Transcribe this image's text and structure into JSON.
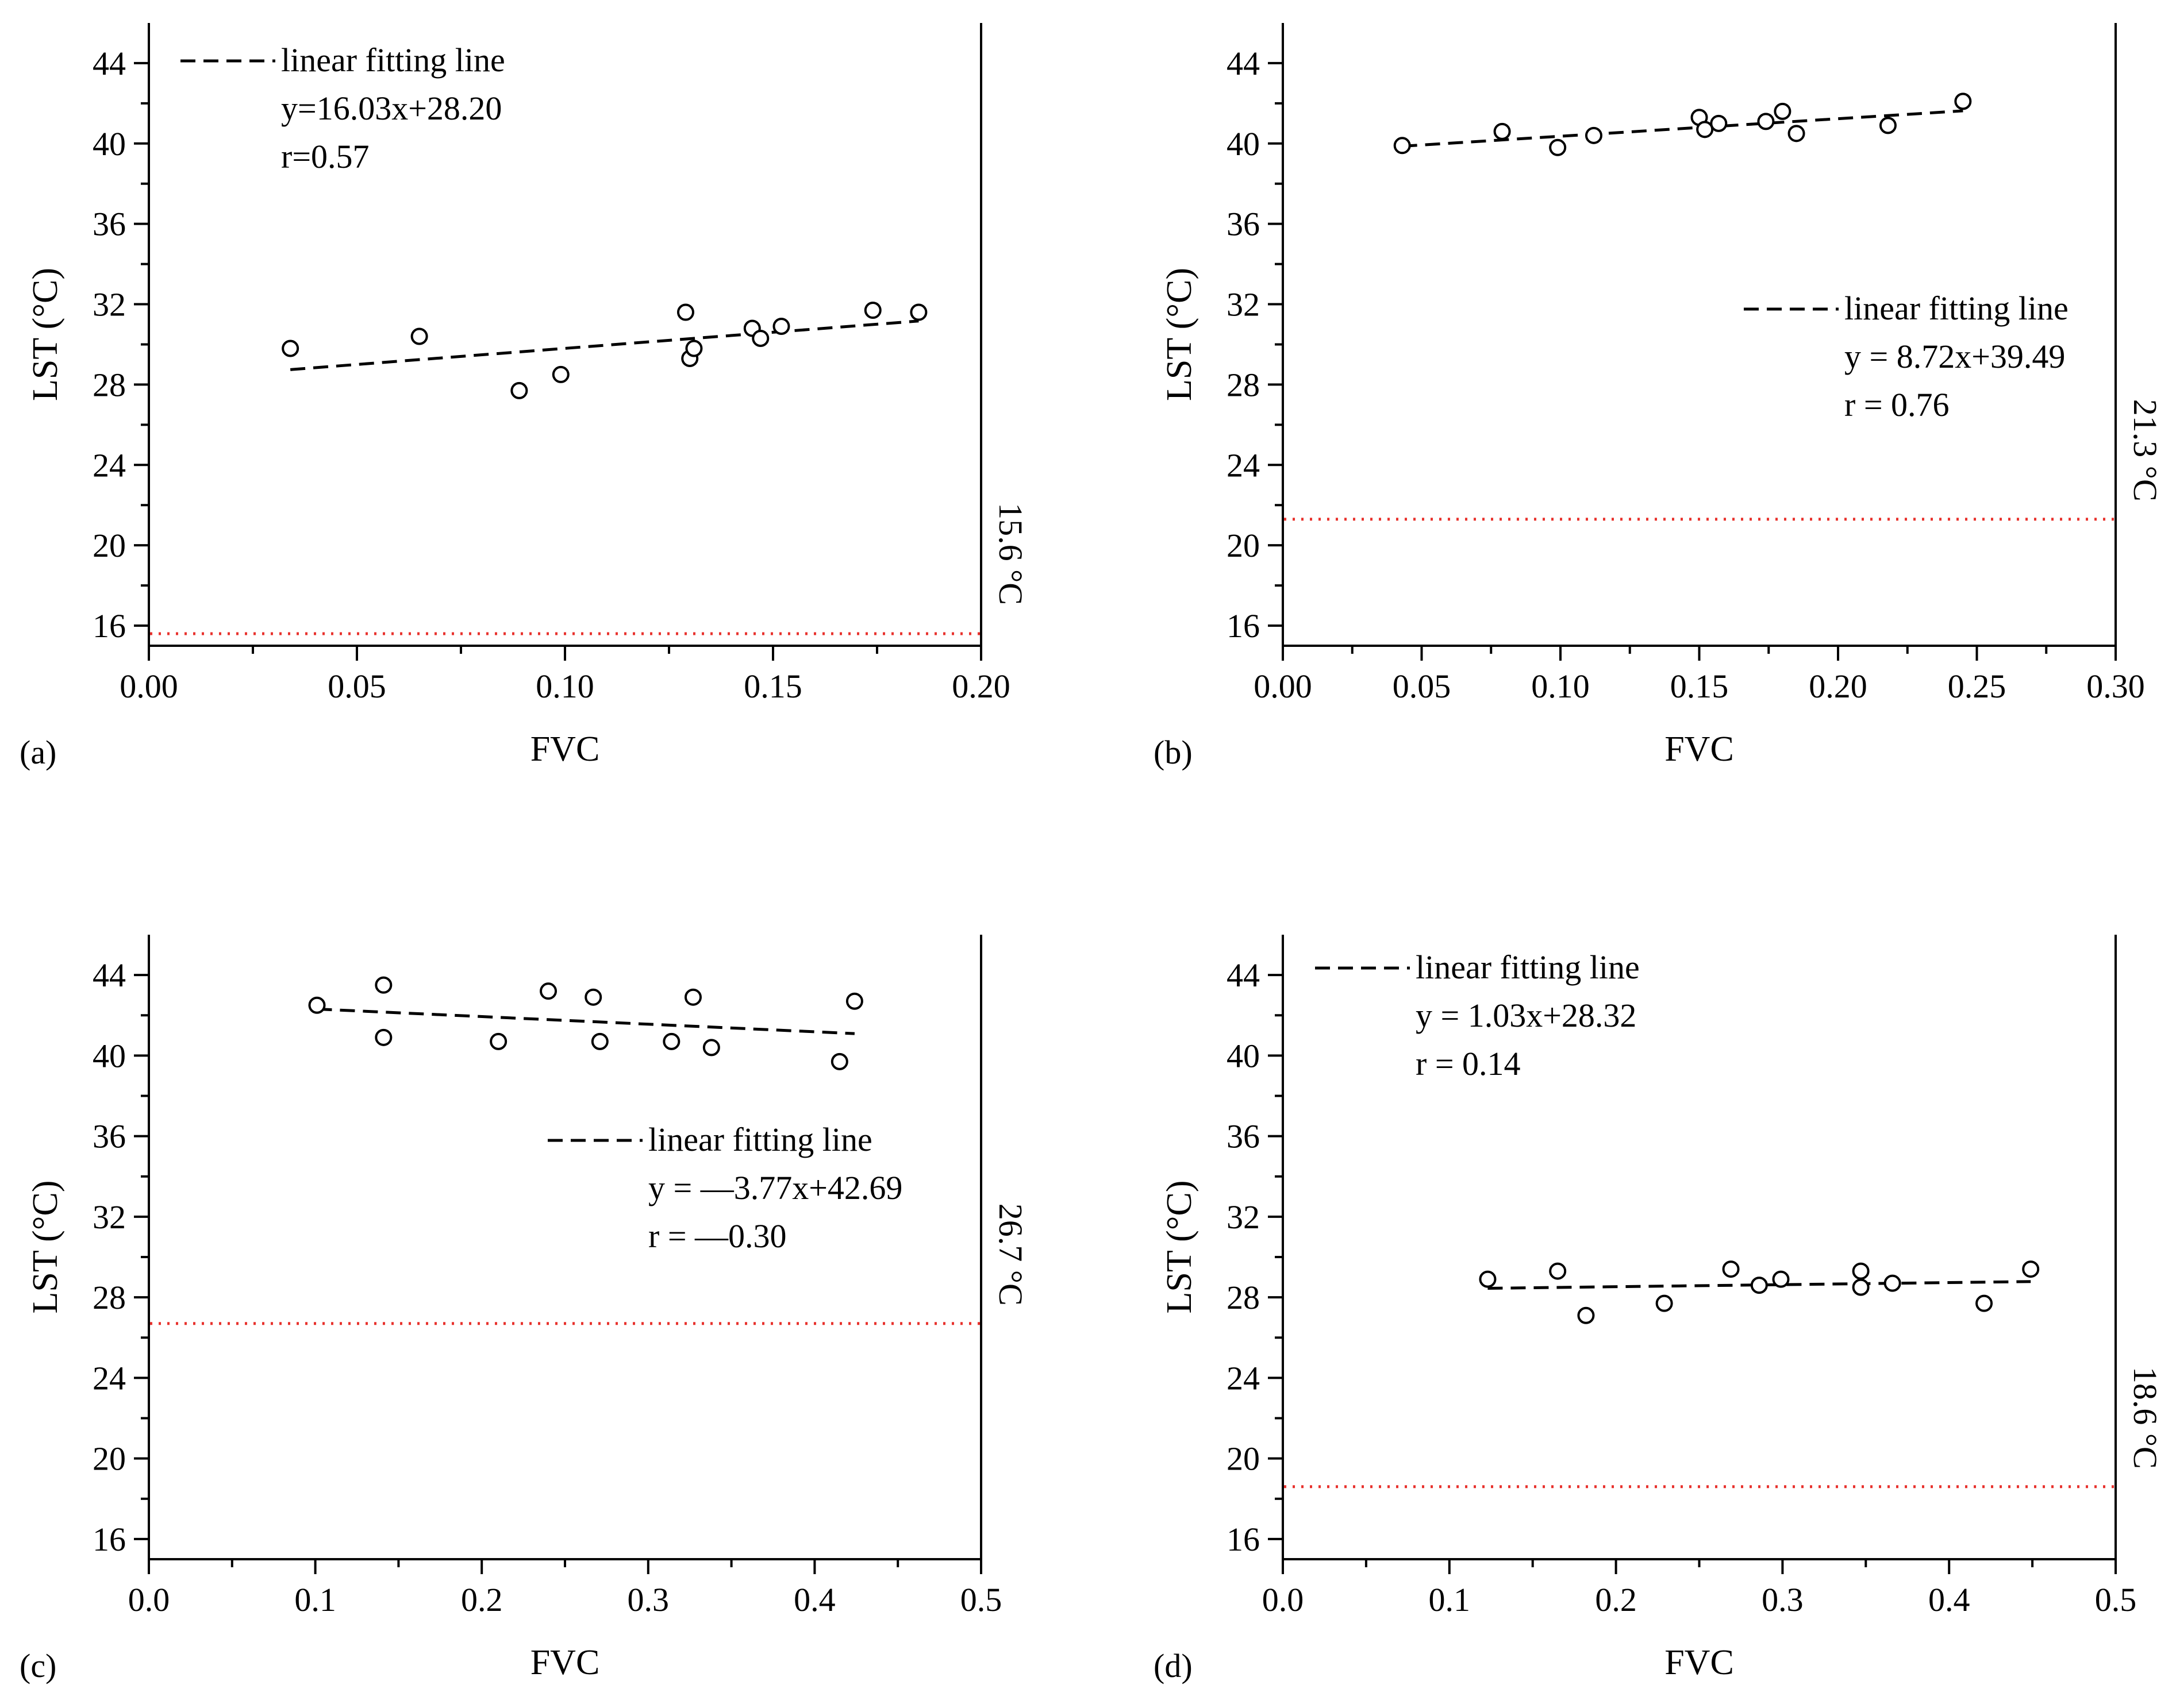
{
  "colors": {
    "axis": "#000000",
    "reference_line": "#e8322d",
    "points_fill": "#ffffff"
  },
  "chart_data": [
    {
      "panel": "(a)",
      "type": "scatter",
      "xlabel": "FVC",
      "ylabel": "LST (°C)",
      "xlim": [
        0,
        0.2
      ],
      "ylim": [
        15,
        46
      ],
      "xticks": [
        0.0,
        0.05,
        0.1,
        0.15,
        0.2
      ],
      "xtick_labels": [
        "0.00",
        "0.05",
        "0.10",
        "0.15",
        "0.20"
      ],
      "yticks": [
        16,
        20,
        24,
        28,
        32,
        36,
        40,
        44
      ],
      "ytick_labels": [
        "16",
        "20",
        "24",
        "28",
        "32",
        "36",
        "40",
        "44"
      ],
      "points": [
        {
          "x": 0.034,
          "y": 29.8
        },
        {
          "x": 0.065,
          "y": 30.4
        },
        {
          "x": 0.089,
          "y": 27.7
        },
        {
          "x": 0.099,
          "y": 28.5
        },
        {
          "x": 0.129,
          "y": 31.6
        },
        {
          "x": 0.13,
          "y": 29.3
        },
        {
          "x": 0.131,
          "y": 29.8
        },
        {
          "x": 0.145,
          "y": 30.8
        },
        {
          "x": 0.147,
          "y": 30.3
        },
        {
          "x": 0.152,
          "y": 30.9
        },
        {
          "x": 0.174,
          "y": 31.7
        },
        {
          "x": 0.185,
          "y": 31.6
        }
      ],
      "fit": {
        "x_range": [
          0.034,
          0.185
        ],
        "slope": 16.03,
        "intercept": 28.2
      },
      "reference": {
        "value": 15.6,
        "label": "15.6 °C"
      },
      "legend": {
        "position": "top-left",
        "line_label": "linear fitting line",
        "equation": "y=16.03x+28.20",
        "r": "r=0.57"
      }
    },
    {
      "panel": "(b)",
      "type": "scatter",
      "xlabel": "FVC",
      "ylabel": "LST (°C)",
      "xlim": [
        0,
        0.3
      ],
      "ylim": [
        15,
        46
      ],
      "xticks": [
        0.0,
        0.05,
        0.1,
        0.15,
        0.2,
        0.25,
        0.3
      ],
      "xtick_labels": [
        "0.00",
        "0.05",
        "0.10",
        "0.15",
        "0.20",
        "0.25",
        "0.30"
      ],
      "yticks": [
        16,
        20,
        24,
        28,
        32,
        36,
        40,
        44
      ],
      "ytick_labels": [
        "16",
        "20",
        "24",
        "28",
        "32",
        "36",
        "40",
        "44"
      ],
      "points": [
        {
          "x": 0.043,
          "y": 39.9
        },
        {
          "x": 0.079,
          "y": 40.6
        },
        {
          "x": 0.099,
          "y": 39.8
        },
        {
          "x": 0.112,
          "y": 40.4
        },
        {
          "x": 0.15,
          "y": 41.3
        },
        {
          "x": 0.152,
          "y": 40.7
        },
        {
          "x": 0.157,
          "y": 41.0
        },
        {
          "x": 0.174,
          "y": 41.1
        },
        {
          "x": 0.18,
          "y": 41.6
        },
        {
          "x": 0.185,
          "y": 40.5
        },
        {
          "x": 0.218,
          "y": 40.9
        },
        {
          "x": 0.245,
          "y": 42.1
        }
      ],
      "fit": {
        "x_range": [
          0.043,
          0.245
        ],
        "slope": 8.72,
        "intercept": 39.49
      },
      "reference": {
        "value": 21.3,
        "label": "21.3 °C"
      },
      "legend": {
        "position": "center-right",
        "line_label": "linear fitting line",
        "equation": "y = 8.72x+39.49",
        "r": "r = 0.76"
      }
    },
    {
      "panel": "(c)",
      "type": "scatter",
      "xlabel": "FVC",
      "ylabel": "LST (°C)",
      "xlim": [
        0,
        0.5
      ],
      "ylim": [
        15,
        46
      ],
      "xticks": [
        0.0,
        0.1,
        0.2,
        0.3,
        0.4,
        0.5
      ],
      "xtick_labels": [
        "0.0",
        "0.1",
        "0.2",
        "0.3",
        "0.4",
        "0.5"
      ],
      "yticks": [
        16,
        20,
        24,
        28,
        32,
        36,
        40,
        44
      ],
      "ytick_labels": [
        "16",
        "20",
        "24",
        "28",
        "32",
        "36",
        "40",
        "44"
      ],
      "points": [
        {
          "x": 0.101,
          "y": 42.5
        },
        {
          "x": 0.141,
          "y": 43.5
        },
        {
          "x": 0.141,
          "y": 40.9
        },
        {
          "x": 0.21,
          "y": 40.7
        },
        {
          "x": 0.24,
          "y": 43.2
        },
        {
          "x": 0.267,
          "y": 42.9
        },
        {
          "x": 0.271,
          "y": 40.7
        },
        {
          "x": 0.314,
          "y": 40.7
        },
        {
          "x": 0.327,
          "y": 42.9
        },
        {
          "x": 0.338,
          "y": 40.4
        },
        {
          "x": 0.415,
          "y": 39.7
        },
        {
          "x": 0.424,
          "y": 42.7
        }
      ],
      "fit": {
        "x_range": [
          0.101,
          0.424
        ],
        "slope": -3.77,
        "intercept": 42.69
      },
      "reference": {
        "value": 26.7,
        "label": "26.7 °C"
      },
      "legend": {
        "position": "center-right",
        "line_label": "linear fitting line",
        "equation": "y = —3.77x+42.69",
        "r": "r = —0.30"
      }
    },
    {
      "panel": "(d)",
      "type": "scatter",
      "xlabel": "FVC",
      "ylabel": "LST (°C)",
      "xlim": [
        0,
        0.5
      ],
      "ylim": [
        15,
        46
      ],
      "xticks": [
        0.0,
        0.1,
        0.2,
        0.3,
        0.4,
        0.5
      ],
      "xtick_labels": [
        "0.0",
        "0.1",
        "0.2",
        "0.3",
        "0.4",
        "0.5"
      ],
      "yticks": [
        16,
        20,
        24,
        28,
        32,
        36,
        40,
        44
      ],
      "ytick_labels": [
        "16",
        "20",
        "24",
        "28",
        "32",
        "36",
        "40",
        "44"
      ],
      "points": [
        {
          "x": 0.123,
          "y": 28.9
        },
        {
          "x": 0.165,
          "y": 29.3
        },
        {
          "x": 0.182,
          "y": 27.1
        },
        {
          "x": 0.229,
          "y": 27.7
        },
        {
          "x": 0.269,
          "y": 29.4
        },
        {
          "x": 0.286,
          "y": 28.6
        },
        {
          "x": 0.299,
          "y": 28.9
        },
        {
          "x": 0.347,
          "y": 29.3
        },
        {
          "x": 0.347,
          "y": 28.5
        },
        {
          "x": 0.366,
          "y": 28.7
        },
        {
          "x": 0.421,
          "y": 27.7
        },
        {
          "x": 0.449,
          "y": 29.4
        }
      ],
      "fit": {
        "x_range": [
          0.123,
          0.449
        ],
        "slope": 1.03,
        "intercept": 28.32
      },
      "reference": {
        "value": 18.6,
        "label": "18.6 °C"
      },
      "legend": {
        "position": "top-left",
        "line_label": "linear fitting line",
        "equation": "y = 1.03x+28.32",
        "r": "r = 0.14"
      }
    }
  ]
}
